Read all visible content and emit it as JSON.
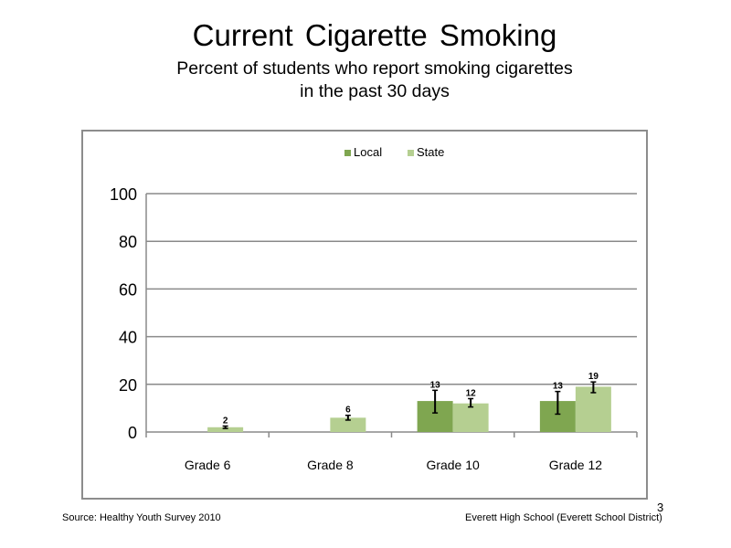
{
  "slide": {
    "title": "Current Cigarette Smoking",
    "subtitle_line1": "Percent of students who report smoking cigarettes",
    "subtitle_line2": "in the past 30 days",
    "source": "Source: Healthy Youth Survey 2010",
    "school": "Everett High School (Everett School District)",
    "page_number": "3"
  },
  "chart_data": {
    "type": "bar",
    "categories": [
      "Grade 6",
      "Grade 8",
      "Grade 10",
      "Grade 12"
    ],
    "series": [
      {
        "name": "Local",
        "color": "#7fa650",
        "values": [
          null,
          null,
          13,
          13
        ],
        "labels": [
          "",
          "",
          "13",
          "13"
        ],
        "error_low": [
          null,
          null,
          8,
          7.5
        ],
        "error_high": [
          null,
          null,
          17.5,
          17
        ]
      },
      {
        "name": "State",
        "color": "#b5cf91",
        "values": [
          2,
          6,
          12,
          19
        ],
        "labels": [
          "2",
          "6",
          "12",
          "19"
        ],
        "error_low": [
          1.5,
          5,
          10.5,
          16.5
        ],
        "error_high": [
          2.5,
          7,
          14,
          21
        ]
      }
    ],
    "ylim": [
      0,
      100
    ],
    "yticks": [
      0,
      20,
      40,
      60,
      80,
      100
    ],
    "legend_position": "top",
    "grid": true
  }
}
